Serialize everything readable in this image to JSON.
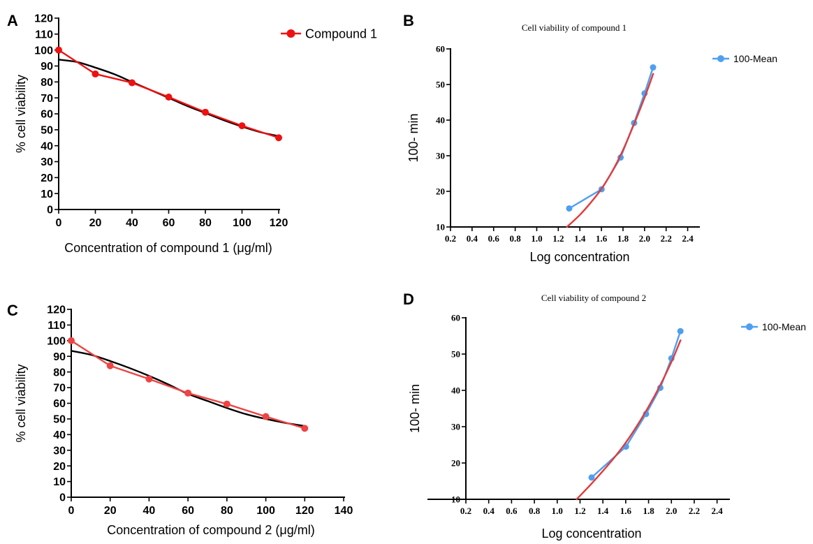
{
  "colors": {
    "fit_line": "#000000",
    "compound_red": "#ee1111",
    "compound_red_light": "#ee4444",
    "mean_blue": "#4f9ff0",
    "regression_red": "#e23a3a",
    "axis": "#000000"
  },
  "chart_data": [
    {
      "panel": "A",
      "type": "line",
      "title": "",
      "xlabel": "Concentration of compound 1 (μg/ml)",
      "ylabel": "% cell viability",
      "xlim": [
        0,
        120
      ],
      "ylim": [
        0,
        120
      ],
      "xticks": [
        0,
        20,
        40,
        60,
        80,
        100,
        120
      ],
      "yticks": [
        0,
        10,
        20,
        30,
        40,
        50,
        60,
        70,
        80,
        90,
        100,
        110,
        120
      ],
      "legend": {
        "position": "top-right",
        "entries": [
          "Compound 1"
        ]
      },
      "series": [
        {
          "name": "Compound 1",
          "kind": "data",
          "color": "#ee1111",
          "markers": true,
          "x": [
            0,
            20,
            40,
            60,
            80,
            100,
            120
          ],
          "y": [
            100,
            85,
            79.5,
            70.5,
            61,
            52.5,
            45
          ]
        },
        {
          "kind": "fit",
          "color": "#000000",
          "markers": false,
          "x": [
            0,
            10,
            20,
            30,
            40,
            50,
            60,
            70,
            80,
            90,
            100,
            110,
            120
          ],
          "y": [
            94,
            92.5,
            89,
            85,
            80,
            75,
            70,
            65,
            60.5,
            56,
            52,
            48.5,
            46
          ]
        }
      ]
    },
    {
      "panel": "B",
      "type": "line",
      "title": "Cell viability of  compound 1",
      "xlabel": "Log concentration",
      "ylabel": "100- min",
      "xlim": [
        0.2,
        2.5
      ],
      "ylim": [
        10,
        60
      ],
      "xticks": [
        "0.2",
        "0.4",
        "0.6",
        "0.8",
        "1.0",
        "1.2",
        "1.4",
        "1.6",
        "1.8",
        "2.0",
        "2.2",
        "2.4"
      ],
      "yticks": [
        10,
        20,
        30,
        40,
        50,
        60
      ],
      "legend": {
        "position": "top-right",
        "entries": [
          "100-Mean"
        ]
      },
      "series": [
        {
          "name": "100-Mean",
          "kind": "data",
          "color": "#4f9ff0",
          "markers": true,
          "x": [
            1.301,
            1.602,
            1.778,
            1.903,
            2.0,
            2.079
          ],
          "y": [
            15.2,
            20.6,
            29.5,
            39.2,
            47.5,
            54.8
          ]
        },
        {
          "kind": "fit",
          "color": "#e23a3a",
          "markers": false,
          "x": [
            1.28,
            1.4,
            1.5,
            1.6,
            1.7,
            1.8,
            1.9,
            2.0,
            2.08
          ],
          "y": [
            10,
            13.4,
            16.8,
            20.7,
            25.6,
            31.6,
            38.7,
            46.3,
            53
          ]
        }
      ]
    },
    {
      "panel": "C",
      "type": "line",
      "title": "",
      "xlabel": "Concentration of compound 2 (μg/ml)",
      "ylabel": "% cell viability",
      "xlim": [
        0,
        140
      ],
      "ylim": [
        0,
        120
      ],
      "xticks": [
        0,
        20,
        40,
        60,
        80,
        100,
        120,
        140
      ],
      "yticks": [
        0,
        10,
        20,
        30,
        40,
        50,
        60,
        70,
        80,
        90,
        100,
        110,
        120
      ],
      "series": [
        {
          "kind": "data",
          "color": "#ee4444",
          "markers": true,
          "x": [
            0,
            20,
            40,
            60,
            80,
            100,
            120
          ],
          "y": [
            100,
            84,
            75.5,
            66.5,
            59.5,
            51.5,
            44
          ]
        },
        {
          "kind": "fit",
          "color": "#000000",
          "markers": false,
          "x": [
            0,
            10,
            20,
            30,
            40,
            50,
            60,
            70,
            80,
            90,
            100,
            110,
            120
          ],
          "y": [
            93.5,
            91,
            87,
            82.5,
            77.5,
            72,
            66,
            61.5,
            57,
            53,
            50,
            47.5,
            45.5
          ]
        }
      ]
    },
    {
      "panel": "D",
      "type": "line",
      "title": "Cell viability of  compound 2",
      "xlabel": "Log concentration",
      "ylabel": "100- min",
      "xlim": [
        0.2,
        2.5
      ],
      "ylim": [
        10,
        60
      ],
      "xticks": [
        "0.2",
        "0.4",
        "0.6",
        "0.8",
        "1.0",
        "1.2",
        "1.4",
        "1.6",
        "1.8",
        "2.0",
        "2.2",
        "2.4"
      ],
      "yticks": [
        10,
        20,
        30,
        40,
        50,
        60
      ],
      "legend": {
        "position": "top-right",
        "entries": [
          "100-Mean"
        ]
      },
      "series": [
        {
          "name": "100-Mean",
          "kind": "data",
          "color": "#4f9ff0",
          "markers": true,
          "x": [
            1.301,
            1.602,
            1.778,
            1.903,
            2.0,
            2.079
          ],
          "y": [
            16,
            24.5,
            33.5,
            40.7,
            48.8,
            56.3
          ]
        },
        {
          "kind": "fit",
          "color": "#e23a3a",
          "markers": false,
          "x": [
            1.17,
            1.3,
            1.4,
            1.5,
            1.6,
            1.7,
            1.8,
            1.9,
            2.0,
            2.08
          ],
          "y": [
            10,
            14.3,
            17.8,
            21.5,
            25.6,
            30.3,
            35.5,
            41.3,
            47.8,
            53.8
          ]
        }
      ]
    }
  ]
}
